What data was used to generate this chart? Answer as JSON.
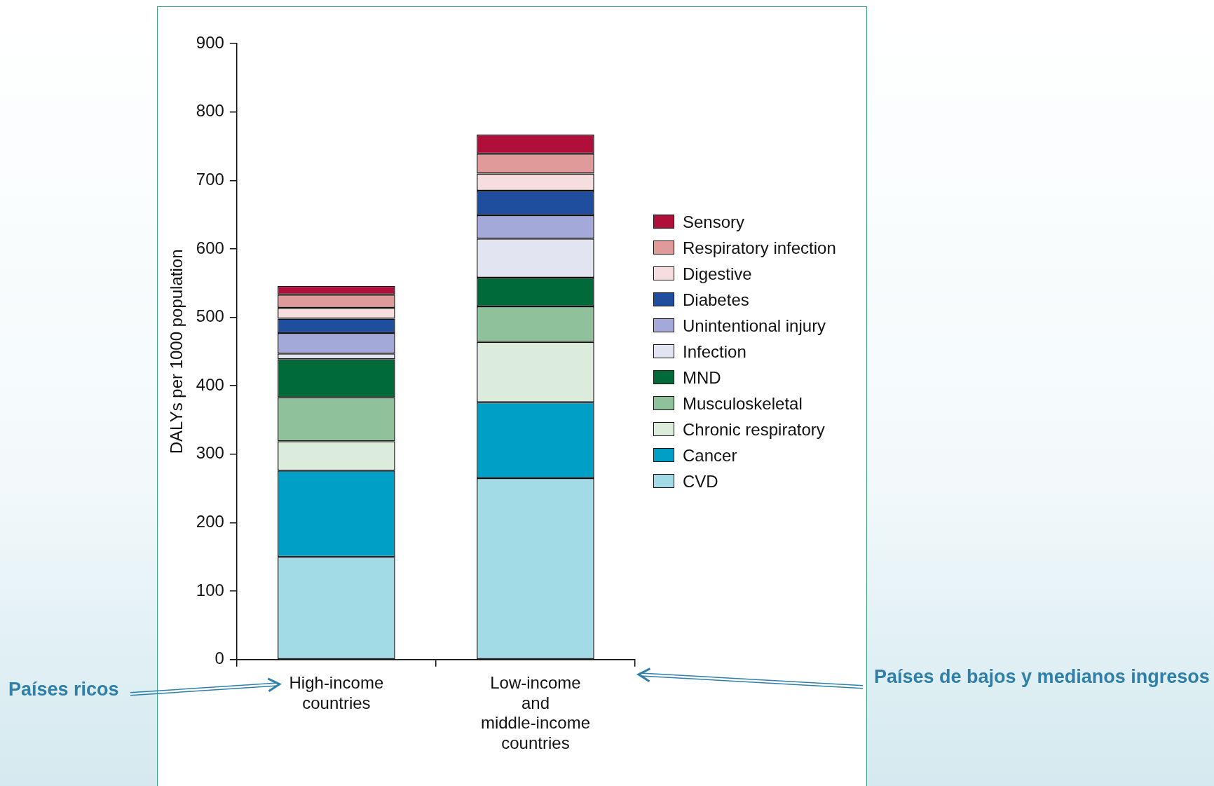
{
  "chart_data": {
    "type": "bar",
    "stacked": true,
    "ylabel": "DALYs per 1000 population",
    "categories": [
      "High-income countries",
      "Low-income and middle-income countries"
    ],
    "ylim": [
      0,
      900
    ],
    "yticks": [
      0,
      100,
      200,
      300,
      400,
      500,
      600,
      700,
      800,
      900
    ],
    "grid": false,
    "legend": "right",
    "series": [
      {
        "name": "CVD",
        "color": "#a2dbe6",
        "values": [
          150,
          265
        ]
      },
      {
        "name": "Cancer",
        "color": "#009fc6",
        "values": [
          126,
          111
        ]
      },
      {
        "name": "Chronic respiratory",
        "color": "#dcecdc",
        "values": [
          43,
          88
        ]
      },
      {
        "name": "Musculoskeletal",
        "color": "#8fc19a",
        "values": [
          64,
          52
        ]
      },
      {
        "name": "MND",
        "color": "#006a3b",
        "values": [
          56,
          42
        ]
      },
      {
        "name": "Infection",
        "color": "#e3e4f2",
        "values": [
          8,
          57
        ]
      },
      {
        "name": "Unintentional injury",
        "color": "#a3a9d8",
        "values": [
          30,
          34
        ]
      },
      {
        "name": "Diabetes",
        "color": "#1f4e9f",
        "values": [
          21,
          36
        ]
      },
      {
        "name": "Digestive",
        "color": "#f7dede",
        "values": [
          16,
          25
        ]
      },
      {
        "name": "Respiratory infection",
        "color": "#e09a9a",
        "values": [
          19,
          29
        ]
      },
      {
        "name": "Sensory",
        "color": "#b00f3a",
        "values": [
          13,
          28
        ]
      }
    ],
    "annotations": [
      "Países ricos",
      "Países de bajos y medianos ingresos"
    ]
  }
}
